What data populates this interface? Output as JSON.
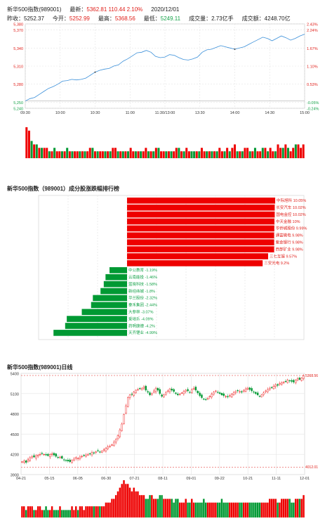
{
  "header": {
    "row1": [
      {
        "label": "新华500指数(989001)",
        "value": "",
        "color": "#222222"
      },
      {
        "label": "最新：",
        "value": "5362.81  110.44  2.10%",
        "color": "#e0201b"
      },
      {
        "label": "",
        "value": "2020/12/01",
        "color": "#222222"
      }
    ],
    "row2": [
      {
        "label": "昨收：",
        "value": "5252.37",
        "color": "#222222"
      },
      {
        "label": "今开：",
        "value": "5252.99",
        "color": "#e0201b"
      },
      {
        "label": "最高：",
        "value": "5368.56",
        "color": "#e0201b"
      },
      {
        "label": "最低：",
        "value": "5249.11",
        "color": "#17a34a"
      },
      {
        "label": "成交量：",
        "value": "2.73亿手",
        "color": "#222222"
      },
      {
        "label": "成交额：",
        "value": "4248.70亿",
        "color": "#222222"
      }
    ]
  },
  "colors": {
    "up": "#e0201b",
    "down": "#17a34a",
    "line": "#3a8fd9",
    "bar_up": "#ee0000",
    "bar_down": "#009933"
  },
  "chart_data": [
    {
      "id": "intraday",
      "type": "line",
      "x_ticks": [
        "09:30",
        "10:00",
        "10:30",
        "11:00",
        "11:30/13:00",
        "13:30",
        "14:00",
        "14:30",
        "15:00"
      ],
      "y_ticks_left": [
        "5,380",
        "5,370",
        "5,340",
        "5,310",
        "5,280",
        "5,250",
        "5,240"
      ],
      "y_ticks_right": [
        "2.43%",
        "2.24%",
        "1.67%",
        "1.10%",
        "0.53%",
        "-0.05%",
        "-0.24%"
      ],
      "ylim": [
        5240,
        5380
      ],
      "prev_close": 5252.37,
      "price": [
        [
          0,
          5252
        ],
        [
          4,
          5256
        ],
        [
          8,
          5258
        ],
        [
          12,
          5263
        ],
        [
          16,
          5268
        ],
        [
          20,
          5273
        ],
        [
          24,
          5276
        ],
        [
          28,
          5280
        ],
        [
          32,
          5285
        ],
        [
          36,
          5286
        ],
        [
          40,
          5288
        ],
        [
          44,
          5287
        ],
        [
          48,
          5288
        ],
        [
          52,
          5290
        ],
        [
          56,
          5295
        ],
        [
          60,
          5300
        ],
        [
          64,
          5303
        ],
        [
          68,
          5305
        ],
        [
          72,
          5306
        ],
        [
          76,
          5310
        ],
        [
          80,
          5312
        ],
        [
          84,
          5318
        ],
        [
          88,
          5322
        ],
        [
          92,
          5327
        ],
        [
          96,
          5332
        ],
        [
          100,
          5333
        ],
        [
          104,
          5336
        ],
        [
          108,
          5333
        ],
        [
          112,
          5326
        ],
        [
          116,
          5324
        ],
        [
          120,
          5325
        ],
        [
          124,
          5329
        ],
        [
          128,
          5328
        ],
        [
          132,
          5324
        ],
        [
          136,
          5321
        ],
        [
          140,
          5320
        ],
        [
          144,
          5322
        ],
        [
          148,
          5325
        ],
        [
          152,
          5333
        ],
        [
          156,
          5337
        ],
        [
          160,
          5338
        ],
        [
          164,
          5341
        ],
        [
          168,
          5344
        ],
        [
          172,
          5342
        ],
        [
          176,
          5340
        ],
        [
          180,
          5338
        ],
        [
          184,
          5340
        ],
        [
          188,
          5342
        ],
        [
          192,
          5346
        ],
        [
          196,
          5350
        ],
        [
          200,
          5354
        ],
        [
          204,
          5358
        ],
        [
          208,
          5356
        ],
        [
          212,
          5352
        ],
        [
          216,
          5356
        ],
        [
          220,
          5360
        ],
        [
          224,
          5357
        ],
        [
          228,
          5353
        ],
        [
          232,
          5356
        ],
        [
          236,
          5360
        ],
        [
          240,
          5363
        ]
      ],
      "avg": [
        [
          0,
          5252
        ],
        [
          60,
          5285
        ],
        [
          120,
          5306
        ],
        [
          180,
          5320
        ],
        [
          240,
          5333
        ]
      ],
      "volume": [
        9,
        8,
        5,
        4,
        4,
        3,
        3,
        3,
        3,
        2,
        2,
        3,
        2,
        2,
        2,
        2,
        3,
        2,
        2,
        2,
        2,
        2,
        2,
        2,
        2,
        3,
        3,
        2,
        2,
        2,
        2,
        2,
        2,
        2,
        3,
        3,
        2,
        2,
        2,
        2,
        2,
        3,
        2,
        2,
        2,
        2,
        2,
        3,
        2,
        2,
        2,
        3,
        3,
        2,
        2,
        2,
        2,
        2,
        2,
        3,
        3,
        2,
        2,
        3,
        2,
        2,
        2,
        2,
        2,
        3,
        2,
        2,
        2,
        2,
        2,
        2,
        3,
        2,
        2,
        3,
        2,
        3,
        4,
        2,
        2,
        2,
        3,
        3,
        2,
        2,
        3,
        2,
        2,
        3,
        3,
        2,
        3,
        2,
        2,
        4,
        3,
        3,
        4,
        3,
        2,
        3,
        4,
        4,
        3,
        4
      ],
      "volume_up": [
        1,
        1,
        0,
        1,
        0,
        1,
        0,
        1,
        1,
        0,
        1,
        0,
        1,
        1,
        0,
        1,
        0,
        1,
        0,
        1,
        1,
        0,
        1,
        0,
        1,
        1,
        0,
        1,
        0,
        1,
        1,
        0,
        1,
        0,
        1,
        1,
        0,
        1,
        0,
        1,
        0,
        1,
        1,
        0,
        1,
        0,
        1,
        1,
        0,
        1,
        0,
        1,
        0,
        1,
        1,
        0,
        1,
        0,
        1,
        1,
        0,
        1,
        0,
        1,
        1,
        0,
        0,
        1,
        0,
        1,
        1,
        0,
        1,
        0,
        1,
        0,
        1,
        1,
        0,
        1,
        0,
        1,
        1,
        0,
        1,
        0,
        1,
        1,
        0,
        1,
        0,
        1,
        1,
        0,
        1,
        0,
        1,
        1,
        0,
        1,
        1,
        0,
        1,
        0,
        1,
        1,
        0,
        1,
        1,
        1
      ]
    },
    {
      "id": "ranking",
      "type": "bar",
      "title": "新华500指数（989001）成分股涨跌幅排行榜",
      "categories": [
        "中际旭科 10.05%",
        "长安汽车 10.02%",
        "国电金控 10.02%",
        "中天金融 10%",
        "华侨城股份 9.99%",
        "通富微电 9.98%",
        "紫金银行 9.98%",
        "西部矿业 9.98%",
        "三七互娱 9.57%",
        "三安光电 9.2%",
        "中公教育 -1.19%",
        "云南能投 -1.46%",
        "蓝晓科技 -1.58%",
        "新经纬城 -1.8%",
        "华兰股份 -2.32%",
        "泰禾集团 -2.44%",
        "大参林 -3.07%",
        "爱培乐 -4.09%",
        "药明康德 -4.2%",
        "天齐锂业 -4.99%"
      ],
      "values": [
        10.05,
        10.02,
        10.02,
        10.0,
        9.99,
        9.98,
        9.98,
        9.98,
        9.57,
        9.2,
        -1.19,
        -1.46,
        -1.58,
        -1.8,
        -2.32,
        -2.44,
        -3.07,
        -4.09,
        -4.2,
        -4.99
      ],
      "xlim": [
        -6,
        12
      ]
    },
    {
      "id": "daily",
      "type": "candlestick",
      "title": "新华500指数(989001)日线",
      "x_ticks": [
        "04-21",
        "05-15",
        "06-05",
        "06-30",
        "07-21",
        "08-11",
        "09-01",
        "09-22",
        "10-21",
        "11-11",
        "12-01"
      ],
      "y_ticks": [
        "5400",
        "5100",
        "4800",
        "4500",
        "4200",
        "3900"
      ],
      "ylim": [
        3900,
        5400
      ],
      "max_label": "5368.56",
      "min_label": "4012.01",
      "closes": [
        4090,
        4100,
        4080,
        4120,
        4150,
        4170,
        4160,
        4180,
        4190,
        4200,
        4210,
        4200,
        4190,
        4180,
        4200,
        4210,
        4190,
        4170,
        4150,
        4160,
        4140,
        4120,
        4110,
        4100,
        4090,
        4110,
        4130,
        4150,
        4140,
        4160,
        4170,
        4180,
        4190,
        4200,
        4210,
        4230,
        4220,
        4240,
        4250,
        4230,
        4250,
        4270,
        4290,
        4310,
        4320,
        4340,
        4380,
        4420,
        4480,
        4560,
        4650,
        4790,
        4920,
        5040,
        5080,
        5090,
        5120,
        5150,
        5160,
        5170,
        5180,
        5200,
        5150,
        5120,
        5080,
        5100,
        5140,
        5180,
        5150,
        5100,
        5060,
        5080,
        5110,
        5140,
        5170,
        5150,
        5130,
        5100,
        5080,
        5090,
        5110,
        5130,
        5150,
        5140,
        5120,
        5160,
        5180,
        5150,
        5110,
        5070,
        5040,
        5020,
        5010,
        5030,
        5060,
        5090,
        5120,
        5140,
        5120,
        5100,
        5080,
        5070,
        5060,
        5050,
        5070,
        5090,
        5110,
        5130,
        5140,
        5130,
        5120,
        5150,
        5170,
        5180,
        5160,
        5140,
        5120,
        5100,
        5080,
        5060,
        5080,
        5110,
        5140,
        5160,
        5180,
        5190,
        5210,
        5230,
        5220,
        5250,
        5260,
        5270,
        5280,
        5300,
        5290,
        5280,
        5270,
        5300,
        5320,
        5310,
        5330,
        5362
      ],
      "volume": [
        3,
        3,
        2,
        3,
        3,
        3,
        2,
        2,
        3,
        3,
        2,
        2,
        3,
        2,
        2,
        3,
        2,
        2,
        2,
        3,
        2,
        2,
        2,
        2,
        2,
        3,
        2,
        3,
        2,
        3,
        3,
        2,
        3,
        3,
        3,
        3,
        3,
        3,
        3,
        3,
        3,
        3,
        4,
        4,
        4,
        5,
        5,
        6,
        7,
        8,
        9,
        10,
        9,
        9,
        8,
        7,
        8,
        7,
        7,
        6,
        6,
        6,
        5,
        5,
        6,
        6,
        5,
        5,
        5,
        6,
        6,
        5,
        5,
        5,
        5,
        5,
        4,
        5,
        5,
        4,
        4,
        4,
        5,
        4,
        4,
        5,
        4,
        4,
        4,
        4,
        4,
        5,
        4,
        4,
        4,
        4,
        4,
        4,
        4,
        4,
        5,
        4,
        4,
        4,
        4,
        4,
        4,
        4,
        4,
        4,
        4,
        4,
        4,
        4,
        4,
        4,
        4,
        4,
        4,
        4,
        4,
        4,
        4,
        4,
        5,
        5,
        5,
        5,
        4,
        4,
        5,
        5,
        5,
        5,
        5,
        4,
        4,
        5,
        5,
        5,
        5,
        6
      ]
    }
  ]
}
